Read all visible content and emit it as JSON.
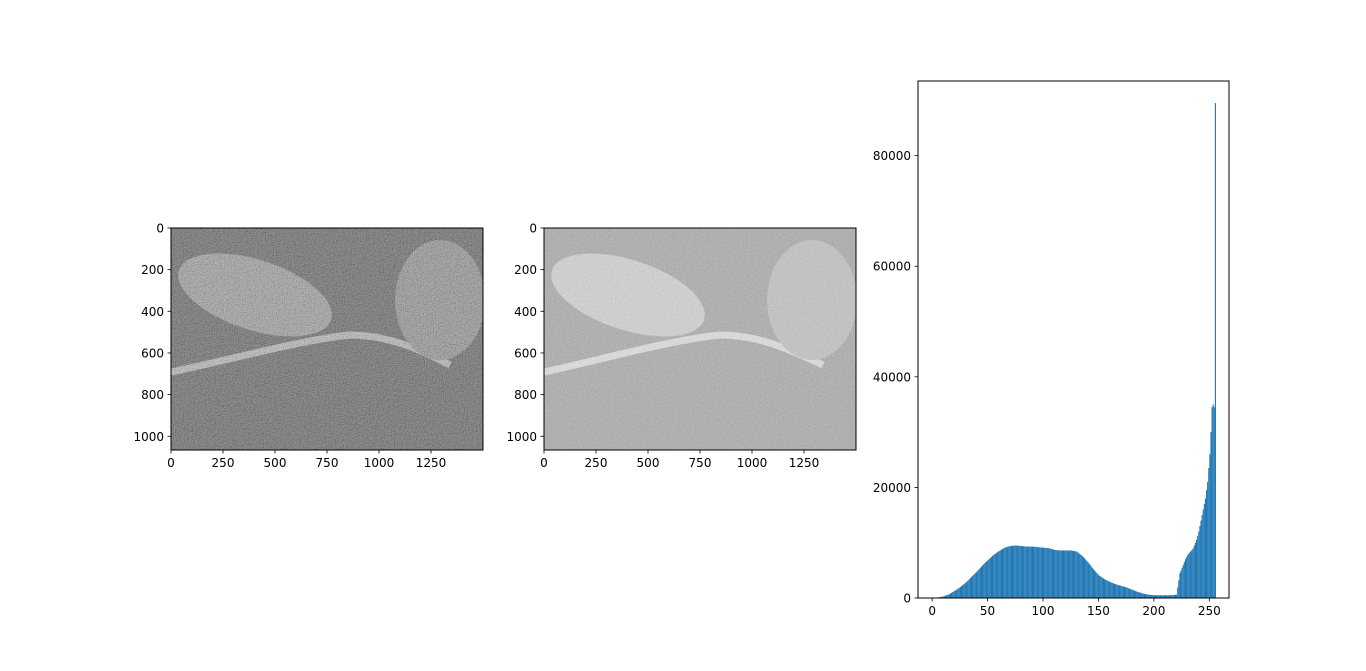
{
  "chart_data": [
    {
      "type": "image",
      "description_text": "",
      "x_ticks": [
        0,
        250,
        500,
        750,
        1000,
        1250
      ],
      "y_ticks": [
        0,
        200,
        400,
        600,
        800,
        1000
      ],
      "xlim": [
        0,
        1500
      ],
      "ylim": [
        1066,
        0
      ],
      "colormap": "gray",
      "title": "",
      "xlabel": "",
      "ylabel": ""
    },
    {
      "type": "image",
      "x_ticks": [
        0,
        250,
        500,
        750,
        1000,
        1250
      ],
      "y_ticks": [
        0,
        200,
        400,
        600,
        800,
        1000
      ],
      "xlim": [
        0,
        1500
      ],
      "ylim": [
        1066,
        0
      ],
      "colormap": "gray",
      "title": "",
      "xlabel": "",
      "ylabel": ""
    },
    {
      "type": "bar",
      "x_ticks": [
        0,
        50,
        100,
        150,
        200,
        250
      ],
      "y_ticks": [
        0,
        20000,
        40000,
        60000,
        80000
      ],
      "xlim": [
        -12.75,
        267.75
      ],
      "ylim": [
        0,
        93500
      ],
      "color": "#1f77b4",
      "x": [
        0,
        5,
        10,
        15,
        20,
        25,
        30,
        35,
        40,
        45,
        50,
        55,
        60,
        65,
        70,
        75,
        80,
        85,
        90,
        95,
        100,
        105,
        110,
        115,
        120,
        125,
        130,
        135,
        140,
        145,
        150,
        155,
        160,
        165,
        170,
        175,
        180,
        185,
        190,
        195,
        200,
        205,
        210,
        215,
        220,
        223,
        225,
        228,
        230,
        233,
        235,
        238,
        240,
        242,
        244,
        246,
        248,
        250,
        251,
        252,
        253,
        254,
        255
      ],
      "values": [
        0,
        100,
        300,
        700,
        1300,
        2000,
        2800,
        3800,
        4800,
        5900,
        6900,
        7800,
        8500,
        9100,
        9400,
        9500,
        9400,
        9300,
        9300,
        9200,
        9100,
        9000,
        8700,
        8600,
        8600,
        8600,
        8400,
        7600,
        6500,
        5200,
        4100,
        3400,
        2900,
        2500,
        2200,
        1900,
        1500,
        1100,
        800,
        600,
        500,
        500,
        500,
        500,
        600,
        4500,
        5500,
        7000,
        7800,
        8500,
        9000,
        10500,
        12000,
        14000,
        16000,
        18000,
        21000,
        26000,
        30000,
        34500,
        35000,
        34500,
        89500
      ],
      "title": "",
      "xlabel": "",
      "ylabel": ""
    }
  ]
}
